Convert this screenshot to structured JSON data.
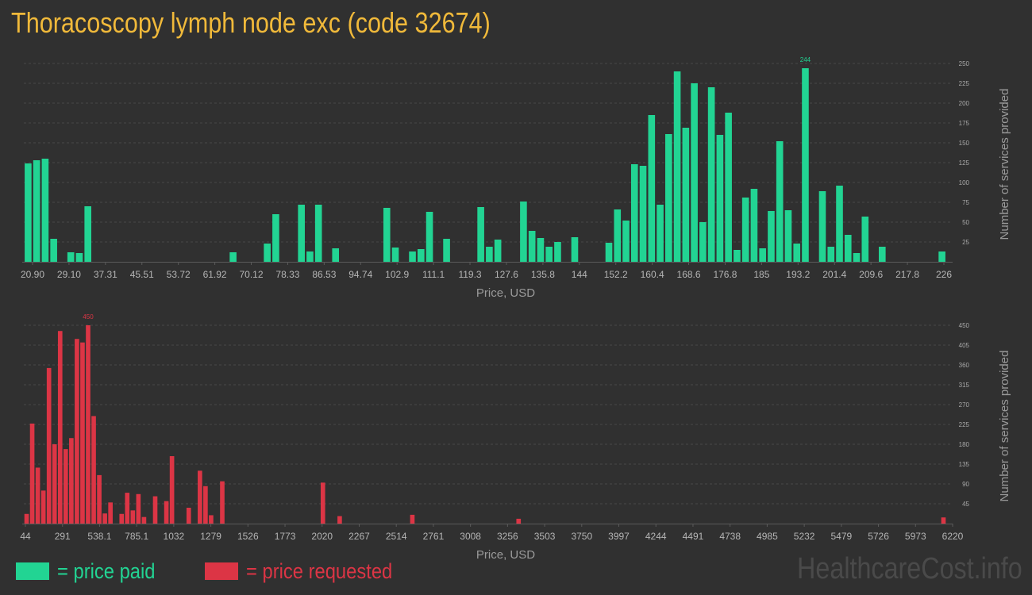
{
  "title": "Thoracoscopy lymph node exc (code 32674)",
  "legend": [
    {
      "label": "= price paid",
      "color": "#22d493"
    },
    {
      "label": "= price requested",
      "color": "#dc3545"
    }
  ],
  "watermark": "HealthcareCost.info",
  "chart_data": [
    {
      "type": "bar",
      "color": "#22d493",
      "xlabel": "Price, USD",
      "ylabel": "Number of services provided",
      "ylim": [
        0,
        250
      ],
      "yticks": [
        "25",
        "50",
        "75",
        "100",
        "125",
        "150",
        "175",
        "200",
        "225",
        "250"
      ],
      "xtick_labels": [
        "20.90",
        "29.10",
        "37.31",
        "45.51",
        "53.72",
        "61.92",
        "70.12",
        "78.33",
        "86.53",
        "94.74",
        "102.9",
        "111.1",
        "119.3",
        "127.6",
        "135.8",
        "144",
        "152.2",
        "160.4",
        "168.6",
        "176.8",
        "185",
        "193.2",
        "201.4",
        "209.6",
        "217.8",
        "226"
      ],
      "max_label": "244",
      "values": [
        124,
        128,
        130,
        29,
        0,
        12,
        11,
        70,
        0,
        0,
        0,
        0,
        0,
        0,
        0,
        0,
        0,
        0,
        0,
        0,
        0,
        0,
        0,
        0,
        12,
        0,
        0,
        0,
        23,
        60,
        0,
        0,
        72,
        13,
        72,
        0,
        17,
        0,
        0,
        0,
        0,
        0,
        68,
        18,
        0,
        13,
        16,
        63,
        0,
        29,
        0,
        0,
        0,
        69,
        19,
        28,
        0,
        0,
        76,
        39,
        30,
        19,
        25,
        0,
        31,
        0,
        0,
        0,
        24,
        66,
        52,
        123,
        121,
        185,
        72,
        161,
        240,
        169,
        225,
        50,
        220,
        160,
        188,
        15,
        81,
        92,
        17,
        64,
        152,
        65,
        23,
        244,
        0,
        89,
        19,
        96,
        34,
        11,
        57,
        0,
        19,
        0,
        0,
        0,
        0,
        0,
        0,
        13
      ]
    },
    {
      "type": "bar",
      "color": "#dc3545",
      "xlabel": "Price, USD",
      "ylabel": "Number of services provided",
      "ylim": [
        0,
        450
      ],
      "yticks": [
        "45",
        "90",
        "135",
        "180",
        "225",
        "270",
        "315",
        "360",
        "405",
        "450"
      ],
      "xtick_labels": [
        "44",
        "291",
        "538.1",
        "785.1",
        "1032",
        "1279",
        "1526",
        "1773",
        "2020",
        "2267",
        "2514",
        "2761",
        "3008",
        "3256",
        "3503",
        "3750",
        "3997",
        "4244",
        "4491",
        "4738",
        "4985",
        "5232",
        "5479",
        "5726",
        "5973",
        "6220"
      ],
      "max_label": "450",
      "values": [
        22,
        227,
        127,
        75,
        353,
        180,
        437,
        169,
        194,
        419,
        411,
        450,
        244,
        110,
        23,
        48,
        0,
        22,
        70,
        30,
        67,
        15,
        0,
        62,
        0,
        51,
        153,
        0,
        0,
        36,
        0,
        120,
        85,
        19,
        0,
        96,
        0,
        0,
        0,
        0,
        0,
        0,
        0,
        0,
        0,
        0,
        0,
        0,
        0,
        0,
        0,
        0,
        0,
        93,
        0,
        0,
        17,
        0,
        0,
        0,
        0,
        0,
        0,
        0,
        0,
        0,
        0,
        0,
        0,
        20,
        0,
        0,
        0,
        0,
        0,
        0,
        0,
        0,
        0,
        0,
        0,
        0,
        0,
        0,
        0,
        0,
        0,
        0,
        11,
        0,
        0,
        0,
        0,
        0,
        0,
        0,
        0,
        0,
        0,
        0,
        0,
        0,
        0,
        0,
        0,
        0,
        0,
        0,
        0,
        0,
        0,
        0,
        0,
        0,
        0,
        0,
        0,
        0,
        0,
        0,
        0,
        0,
        0,
        0,
        0,
        0,
        0,
        0,
        0,
        0,
        0,
        0,
        0,
        0,
        0,
        0,
        0,
        0,
        0,
        0,
        0,
        0,
        0,
        0,
        0,
        0,
        0,
        0,
        0,
        0,
        0,
        0,
        0,
        0,
        0,
        0,
        0,
        0,
        0,
        0,
        0,
        0,
        0,
        0,
        14
      ]
    }
  ]
}
